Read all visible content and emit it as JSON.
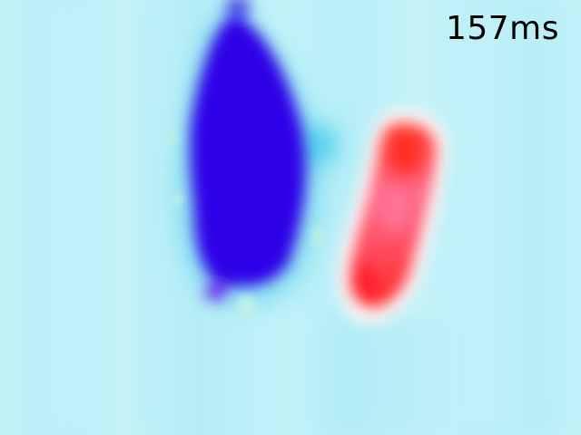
{
  "time_label": "157ms",
  "colors": {
    "background": "#bff0f6",
    "negative_activation": "#2a00e6",
    "positive_activation": "#ff2c2c",
    "label": "#000000"
  }
}
